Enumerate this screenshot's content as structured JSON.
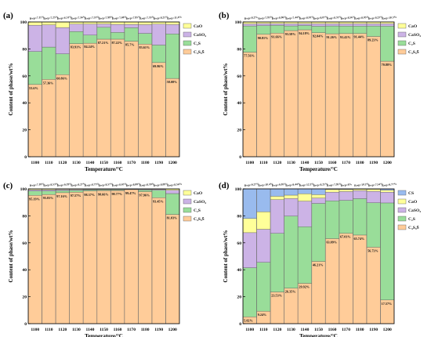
{
  "chart_data": [
    {
      "type": "bar",
      "panel_label": "(a)",
      "xlabel": "Temperature/°C",
      "ylabel": "Content of phase/wt%",
      "ylim": [
        0,
        100
      ],
      "yticks": [
        "0",
        "20",
        "40",
        "60",
        "80",
        "100"
      ],
      "categories": [
        "1100",
        "1110",
        "1120",
        "1130",
        "1140",
        "1150",
        "1160",
        "1170",
        "1180",
        "1190",
        "1200"
      ],
      "rwp_labels": [
        "Rwp=7.11%",
        "Rwp=7.25%",
        "Rwp=6.51%",
        "Rwp=7.56%",
        "Rwp=7.53%",
        "Rwp=7.99%",
        "Rwp=7.68%",
        "Rwp=7.95%",
        "Rwp=7.55%",
        "Rwp=8.21%",
        "Rwp=11.4%"
      ],
      "data_labels": [
        "53.6%",
        "57.36%",
        "60.86%",
        "83.91%",
        "84.24%",
        "87.21%",
        "87.22%",
        "85.7%",
        "83.61%",
        "69.86%",
        "58.08%"
      ],
      "legend": [
        "CaO",
        "CaSO₄",
        "C₂S",
        "C₄S₃S̄"
      ],
      "legend_position": "top-right",
      "series": [
        {
          "name": "C₄S₃S̄",
          "color": "#FFCC99",
          "values": [
            53.6,
            57.36,
            60.86,
            83.91,
            84.24,
            87.21,
            87.22,
            85.7,
            83.61,
            69.86,
            58.08
          ]
        },
        {
          "name": "C₂S",
          "color": "#99DD99",
          "values": [
            24.5,
            24.0,
            15.5,
            9.0,
            6.0,
            8.8,
            5.0,
            10.0,
            7.9,
            13.0,
            33.0
          ]
        },
        {
          "name": "CaSO₄",
          "color": "#CCB3E6",
          "values": [
            19.5,
            16.5,
            19.5,
            5.5,
            8.2,
            2.5,
            6.0,
            2.5,
            6.5,
            15.5,
            7.0
          ]
        },
        {
          "name": "CaO",
          "color": "#FFFF99",
          "values": [
            2.4,
            2.14,
            4.14,
            1.59,
            1.56,
            1.49,
            1.78,
            1.8,
            1.99,
            1.64,
            1.92
          ]
        }
      ]
    },
    {
      "type": "bar",
      "panel_label": "(b)",
      "xlabel": "Temperature/°C",
      "ylabel": "Content of phase/wt%",
      "ylim": [
        0,
        100
      ],
      "yticks": [
        "0",
        "20",
        "40",
        "60",
        "80",
        "100"
      ],
      "categories": [
        "1100",
        "1110",
        "1120",
        "1130",
        "1140",
        "1150",
        "1160",
        "1170",
        "1180",
        "1190",
        "1200"
      ],
      "rwp_labels": [
        "Rwp=8.2%",
        "Rwp=7.95%",
        "Rwp=8.06%",
        "Rwp=7.44%",
        "Rwp=8.01%",
        "Rwp=8.07%",
        "Rwp=8.31%",
        "Rwp=8.56%",
        "Rwp=8.05%",
        "Rwp=8.23%",
        "Rwp=10.3%"
      ],
      "data_labels": [
        "77.56%",
        "90.81%",
        "91.66%",
        "93.58%",
        "94.18%",
        "92.04%",
        "91.26%",
        "91.41%",
        "91.44%",
        "89.23%",
        "70.88%"
      ],
      "legend": [
        "CaO",
        "CaSO₄",
        "C₂S",
        "C₄S₃S̄"
      ],
      "legend_position": "top-right",
      "series": [
        {
          "name": "C₄S₃S̄",
          "color": "#FFCC99",
          "values": [
            77.56,
            90.81,
            91.66,
            93.58,
            94.18,
            92.04,
            91.26,
            91.41,
            91.44,
            89.23,
            70.88
          ]
        },
        {
          "name": "C₂S",
          "color": "#99DD99",
          "values": [
            19.5,
            6.5,
            5.8,
            3.5,
            3.2,
            4.8,
            5.8,
            5.6,
            5.5,
            7.8,
            26.0
          ]
        },
        {
          "name": "CaSO₄",
          "color": "#CCB3E6",
          "values": [
            1.5,
            1.5,
            1.3,
            1.6,
            1.4,
            1.8,
            1.6,
            1.6,
            1.7,
            1.6,
            1.8
          ]
        },
        {
          "name": "CaO",
          "color": "#FFFF99",
          "values": [
            1.44,
            1.19,
            1.24,
            1.32,
            1.22,
            1.36,
            1.34,
            1.39,
            1.36,
            1.37,
            1.32
          ]
        }
      ]
    },
    {
      "type": "bar",
      "panel_label": "(c)",
      "xlabel": "Temperature/°C",
      "ylabel": "Content of phase/wt%",
      "ylim": [
        0,
        100
      ],
      "yticks": [
        "0",
        "20",
        "40",
        "60",
        "80",
        "100"
      ],
      "categories": [
        "1100",
        "1110",
        "1120",
        "1130",
        "1140",
        "1150",
        "1160",
        "1170",
        "1180",
        "1190",
        "1200"
      ],
      "rwp_labels": [
        "Rwp=7.18%",
        "Rwp=8.53%",
        "Rwp=9.19%",
        "Rwp=8.27%",
        "Rwp=8.73%",
        "Rwp=8.57%",
        "Rwp=8.63%",
        "Rwp=8.08%",
        "Rwp=8.18%",
        "Rwp=8.09%",
        "Rwp=8.56%"
      ],
      "data_labels": [
        "95.19%",
        "95.83%",
        "97.16%",
        "97.57%",
        "98.37%",
        "98.66%",
        "98.77%",
        "99.47%",
        "97.96%",
        "93.45%",
        "81.03%"
      ],
      "legend": [
        "CaO",
        "CaSO₄",
        "C₂S",
        "C₄S₃S̄"
      ],
      "legend_position": "top-right",
      "series": [
        {
          "name": "C₄S₃S̄",
          "color": "#FFCC99",
          "values": [
            95.19,
            95.83,
            97.16,
            97.57,
            98.37,
            98.66,
            98.77,
            99.47,
            97.96,
            93.45,
            81.03
          ]
        },
        {
          "name": "C₂S",
          "color": "#99DD99",
          "values": [
            3.2,
            2.6,
            1.6,
            1.3,
            0.8,
            0.6,
            0.5,
            0.2,
            1.2,
            5.5,
            15.5
          ]
        },
        {
          "name": "CaSO₄",
          "color": "#CCB3E6",
          "values": [
            0.9,
            0.9,
            0.7,
            0.6,
            0.4,
            0.4,
            0.4,
            0.2,
            0.5,
            0.6,
            2.5
          ]
        },
        {
          "name": "CaO",
          "color": "#FFFF99",
          "values": [
            0.71,
            0.67,
            0.54,
            0.53,
            0.43,
            0.34,
            0.33,
            0.13,
            0.34,
            0.45,
            0.97
          ]
        }
      ]
    },
    {
      "type": "bar",
      "panel_label": "(d)",
      "xlabel": "Temperature/°C",
      "ylabel": "Content of phase/wt%",
      "ylim": [
        0,
        100
      ],
      "yticks": [
        "0",
        "20",
        "40",
        "60",
        "80",
        "100"
      ],
      "categories": [
        "1100",
        "1110",
        "1120",
        "1130",
        "1140",
        "1150",
        "1160",
        "1170",
        "1180",
        "1190",
        "1200"
      ],
      "rwp_labels": [
        "Rwp=9.27%",
        "Rwp=10.4%",
        "Rwp=9.05%",
        "Rwp=9.44%",
        "Rwp=12.2%",
        "Rwp=8.21%",
        "Rwp=7.95%",
        "Rwp=8%",
        "Rwp=10.2%",
        "Rwp=7.54%",
        "Rwp=9.77%"
      ],
      "data_labels": [
        "5.02%",
        "9.24%",
        "23.53%",
        "26.35%",
        "29.92%",
        "46.21%",
        "63.09%",
        "67.01%",
        "65.74%",
        "56.73%",
        "17.57%"
      ],
      "legend": [
        "CS",
        "CaO",
        "CaSO₄",
        "C₂S",
        "C₄S₃S̄"
      ],
      "legend_position": "top-right",
      "series": [
        {
          "name": "C₄S₃S̄",
          "color": "#FFCC99",
          "values": [
            5.02,
            9.24,
            23.53,
            26.35,
            29.92,
            46.21,
            63.09,
            67.01,
            65.74,
            56.73,
            17.57
          ]
        },
        {
          "name": "C₂S",
          "color": "#99DD99",
          "values": [
            36.5,
            36.3,
            43.5,
            53.5,
            42.0,
            43.0,
            28.0,
            24.5,
            27.0,
            33.0,
            72.0
          ]
        },
        {
          "name": "CaSO₄",
          "color": "#CCB3E6",
          "values": [
            26.0,
            24.5,
            25.0,
            13.0,
            19.0,
            4.0,
            6.5,
            6.5,
            6.0,
            8.5,
            8.0
          ]
        },
        {
          "name": "CaO",
          "color": "#FFFF99",
          "values": [
            10.5,
            13.0,
            2.5,
            2.5,
            5.5,
            2.5,
            2.0,
            1.5,
            1.0,
            1.5,
            1.5
          ]
        },
        {
          "name": "CS",
          "color": "#99BBEE",
          "values": [
            21.98,
            16.96,
            5.47,
            4.65,
            3.58,
            4.29,
            0.41,
            0.49,
            0.26,
            0.27,
            0.93
          ]
        }
      ]
    }
  ]
}
